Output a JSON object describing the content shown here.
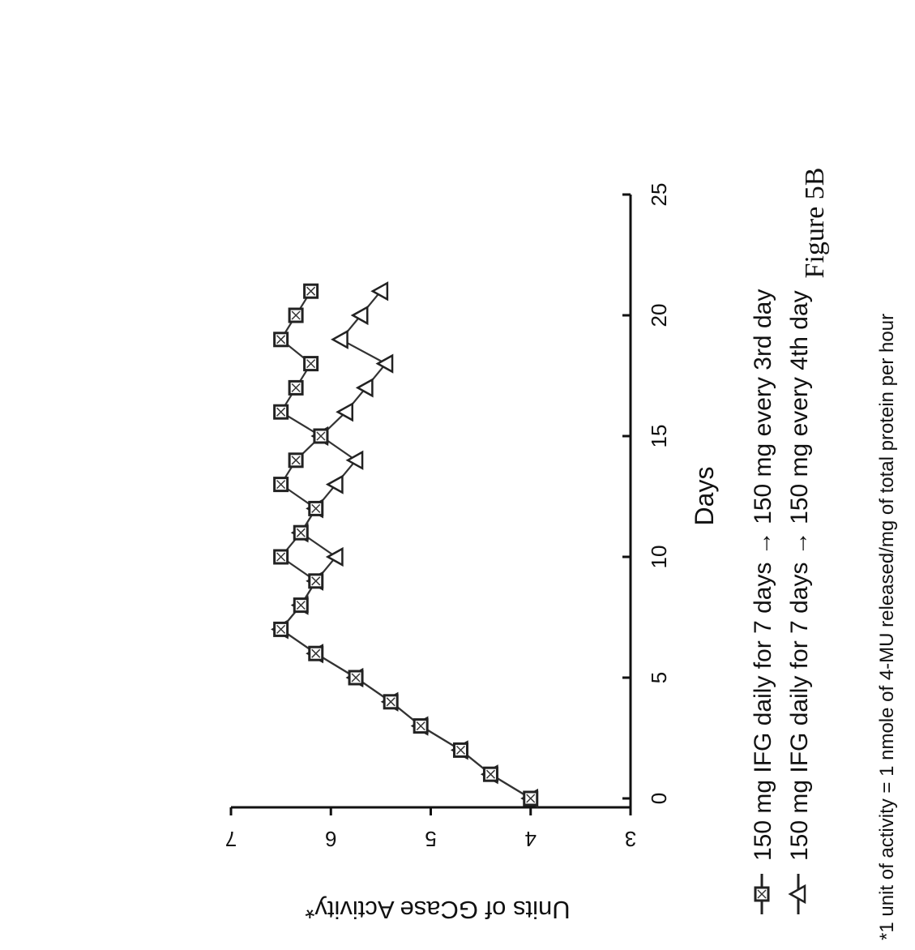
{
  "figure_label": "Figure 5B",
  "footnote": "*1 unit of activity  = 1 nmole of 4-MU released/mg of total protein per hour",
  "chart_data": {
    "type": "line",
    "orientation": "rotated 90° counter-clockwise",
    "xlabel": "Days",
    "ylabel": "Units of GCase Activity*",
    "xlim": [
      0,
      25
    ],
    "ylim": [
      3,
      7
    ],
    "xticks": [
      "0",
      "5",
      "10",
      "15",
      "20",
      "25"
    ],
    "yticks": [
      "3",
      "4",
      "5",
      "6",
      "7"
    ],
    "grid": false,
    "legend_position": "bottom",
    "series": [
      {
        "name": "150 mg IFG daily for 7 days → 150 mg every 3rd day",
        "marker": "square",
        "points": [
          [
            0,
            4.0
          ],
          [
            1,
            4.4
          ],
          [
            2,
            4.7
          ],
          [
            3,
            5.1
          ],
          [
            4,
            5.4
          ],
          [
            5,
            5.75
          ],
          [
            6,
            6.15
          ],
          [
            7,
            6.5
          ],
          [
            8,
            6.3
          ],
          [
            9,
            6.15
          ],
          [
            10,
            6.5
          ],
          [
            11,
            6.3
          ],
          [
            12,
            6.15
          ],
          [
            13,
            6.5
          ],
          [
            14,
            6.35
          ],
          [
            15,
            6.1
          ],
          [
            16,
            6.5
          ],
          [
            17,
            6.35
          ],
          [
            18,
            6.2
          ],
          [
            19,
            6.5
          ],
          [
            20,
            6.35
          ],
          [
            21,
            6.2
          ]
        ]
      },
      {
        "name": "150 mg IFG daily for 7 days → 150 mg every 4th day",
        "marker": "triangle",
        "points": [
          [
            0,
            4.0
          ],
          [
            1,
            4.4
          ],
          [
            2,
            4.7
          ],
          [
            3,
            5.1
          ],
          [
            4,
            5.4
          ],
          [
            5,
            5.75
          ],
          [
            6,
            6.15
          ],
          [
            7,
            6.5
          ],
          [
            8,
            6.3
          ],
          [
            9,
            6.15
          ],
          [
            10,
            5.95
          ],
          [
            11,
            6.3
          ],
          [
            12,
            6.15
          ],
          [
            13,
            5.95
          ],
          [
            14,
            5.75
          ],
          [
            15,
            6.1
          ],
          [
            16,
            5.85
          ],
          [
            17,
            5.65
          ],
          [
            18,
            5.45
          ],
          [
            19,
            5.9
          ],
          [
            20,
            5.7
          ],
          [
            21,
            5.5
          ]
        ]
      }
    ]
  }
}
